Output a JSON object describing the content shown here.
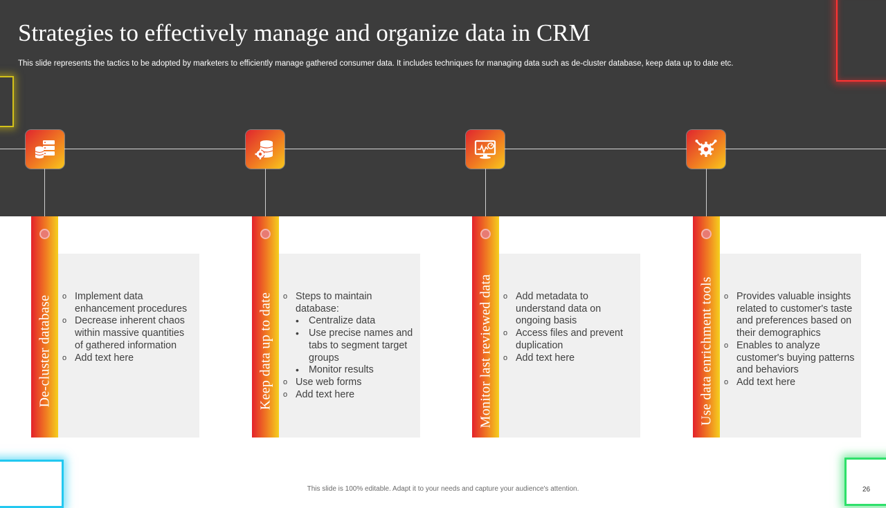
{
  "slide": {
    "title": "Strategies to effectively manage and organize data in CRM",
    "subtitle": "This slide represents the tactics to be adopted by marketers to efficiently manage gathered consumer data. It includes techniques for managing data such as de-cluster database, keep data up to date etc.",
    "footer": "This slide is 100% editable. Adapt it to your needs and capture your audience's attention.",
    "page_number": "26"
  },
  "colors": {
    "dark_band": "#3c3c3c",
    "accent_red": "#e3222b",
    "accent_orange": "#f07c22",
    "accent_yellow": "#f5cf1e",
    "card_bg": "#f0f0f0"
  },
  "strategies": [
    {
      "icon": "database-servers-icon",
      "label": "De-cluster database",
      "items": [
        {
          "text": "Implement data enhancement procedures",
          "level": 1
        },
        {
          "text": "Decrease inherent chaos within massive quantities of gathered information",
          "level": 1
        },
        {
          "text": "Add text here",
          "level": 1
        }
      ]
    },
    {
      "icon": "database-gear-icon",
      "label": "Keep data up to date",
      "items": [
        {
          "text": "Steps to maintain database:",
          "level": 1
        },
        {
          "text": "Centralize data",
          "level": 2
        },
        {
          "text": "Use precise names and tabs to segment target groups",
          "level": 2
        },
        {
          "text": "Monitor results",
          "level": 2
        },
        {
          "text": "Use web forms",
          "level": 1
        },
        {
          "text": "Add text here",
          "level": 1
        }
      ]
    },
    {
      "icon": "monitor-dashboard-icon",
      "label": "Monitor last reviewed data",
      "items": [
        {
          "text": "Add metadata to understand data on ongoing basis",
          "level": 1
        },
        {
          "text": "Access files and prevent duplication",
          "level": 1
        },
        {
          "text": "Add text here",
          "level": 1
        }
      ]
    },
    {
      "icon": "gear-tools-icon",
      "label": "Use data enrichment tools",
      "items": [
        {
          "text": "Provides valuable insights related to customer's taste and preferences based on their demographics",
          "level": 1
        },
        {
          "text": "Enables to analyze customer's buying patterns and behaviors",
          "level": 1
        },
        {
          "text": "Add text here",
          "level": 1
        }
      ]
    }
  ]
}
